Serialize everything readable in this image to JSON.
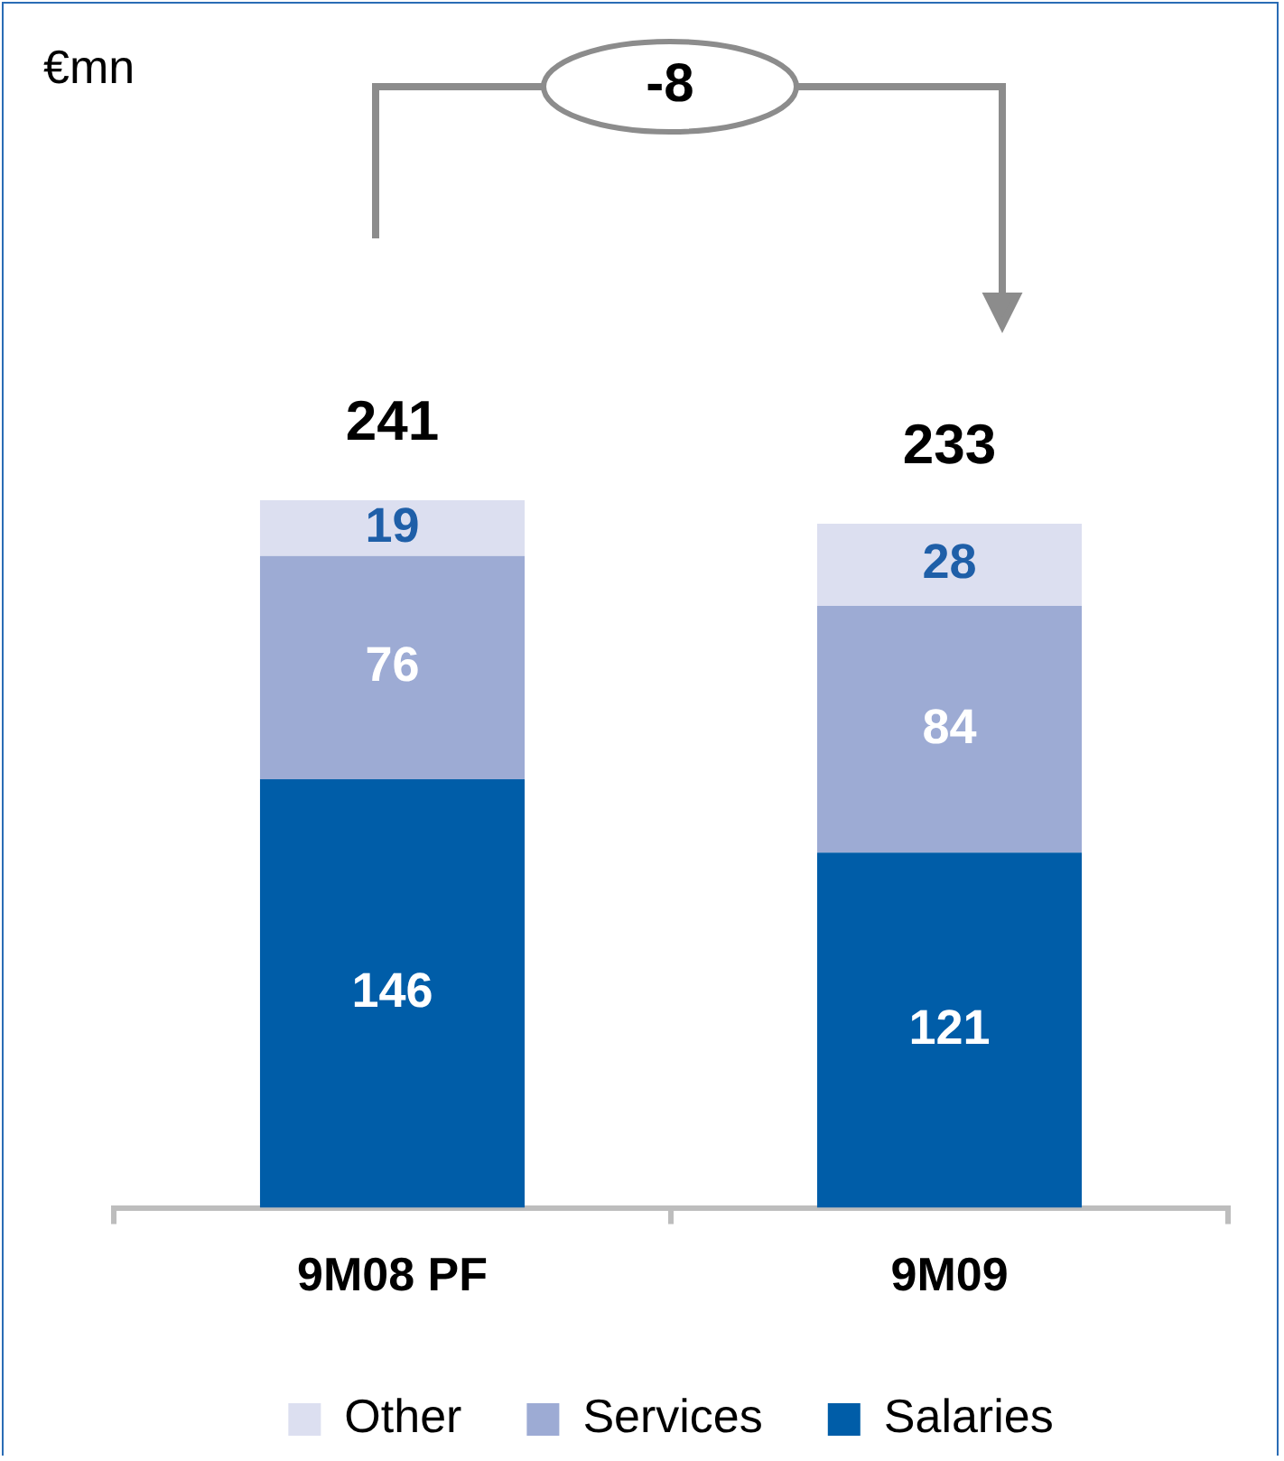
{
  "chart_data": {
    "type": "bar",
    "stacked": true,
    "categories": [
      "9M08 PF",
      "9M09"
    ],
    "series": [
      {
        "name": "Salaries",
        "color": "#005da8",
        "values": [
          146,
          121
        ]
      },
      {
        "name": "Services",
        "color": "#9dabd4",
        "values": [
          76,
          84
        ]
      },
      {
        "name": "Other",
        "color": "#dcdff0",
        "values": [
          19,
          28
        ]
      }
    ],
    "data_labels": true,
    "totals": [
      "241",
      "233"
    ],
    "legend": "bottom",
    "annotations": [
      "€mn",
      "-8"
    ]
  }
}
